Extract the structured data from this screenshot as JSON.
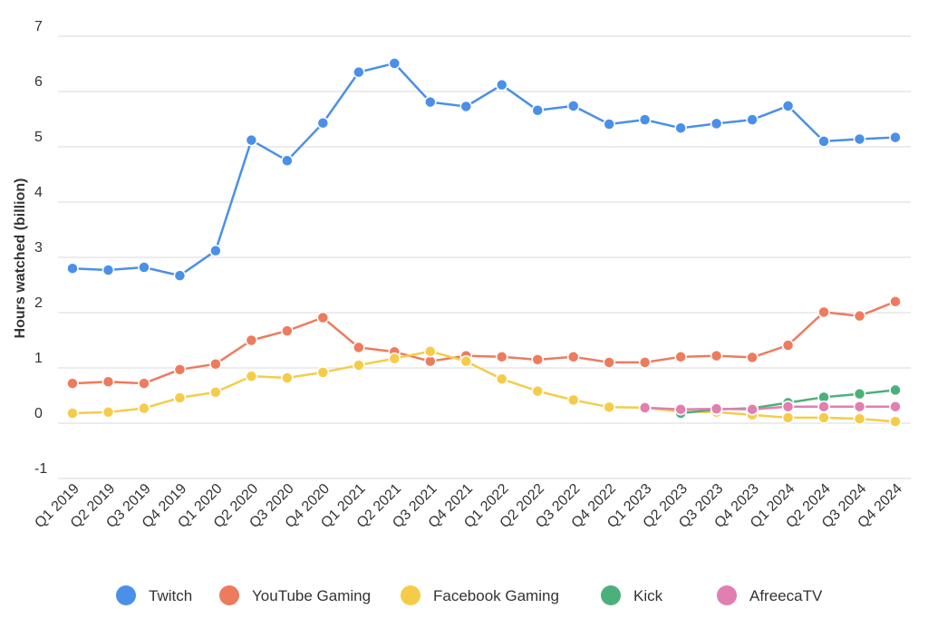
{
  "chart_data": {
    "type": "line",
    "ylabel": "Hours watched (billion)",
    "xlabel": "",
    "ylim": [
      -1,
      7
    ],
    "yticks": [
      7,
      6,
      5,
      4,
      3,
      2,
      1,
      0,
      -1
    ],
    "grid": true,
    "legend_position": "bottom",
    "categories": [
      "Q1 2019",
      "Q2 2019",
      "Q3 2019",
      "Q4 2019",
      "Q1 2020",
      "Q2 2020",
      "Q3 2020",
      "Q4 2020",
      "Q1 2021",
      "Q2 2021",
      "Q3 2021",
      "Q4 2021",
      "Q1 2022",
      "Q2 2022",
      "Q3 2022",
      "Q4 2022",
      "Q1 2023",
      "Q2 2023",
      "Q3 2023",
      "Q4 2023",
      "Q1 2024",
      "Q2 2024",
      "Q3 2024",
      "Q4 2024"
    ],
    "series": [
      {
        "name": "Twitch",
        "color": "#4a90e8",
        "values": [
          2.8,
          2.77,
          2.82,
          2.67,
          3.12,
          5.12,
          4.75,
          5.43,
          6.35,
          6.51,
          5.81,
          5.73,
          6.12,
          5.66,
          5.74,
          5.41,
          5.49,
          5.34,
          5.42,
          5.49,
          5.74,
          5.1,
          5.14,
          5.17
        ]
      },
      {
        "name": "YouTube Gaming",
        "color": "#ee7b5e",
        "values": [
          0.72,
          0.75,
          0.72,
          0.97,
          1.07,
          1.5,
          1.67,
          1.91,
          1.37,
          1.29,
          1.12,
          1.22,
          1.2,
          1.15,
          1.2,
          1.1,
          1.1,
          1.2,
          1.22,
          1.19,
          1.41,
          2.01,
          1.94,
          2.2
        ]
      },
      {
        "name": "Facebook Gaming",
        "color": "#f5cc4a",
        "values": [
          0.18,
          0.2,
          0.27,
          0.46,
          0.56,
          0.85,
          0.82,
          0.92,
          1.05,
          1.17,
          1.3,
          1.12,
          0.8,
          0.58,
          0.42,
          0.29,
          0.28,
          0.21,
          0.2,
          0.15,
          0.1,
          0.1,
          0.08,
          0.03
        ]
      },
      {
        "name": "Kick",
        "color": "#4cb07b",
        "values": [
          null,
          null,
          null,
          null,
          null,
          null,
          null,
          null,
          null,
          null,
          null,
          null,
          null,
          null,
          null,
          null,
          null,
          0.18,
          0.25,
          0.27,
          0.37,
          0.47,
          0.53,
          0.6
        ]
      },
      {
        "name": "AfreecaTV",
        "color": "#e07fb0",
        "values": [
          null,
          null,
          null,
          null,
          null,
          null,
          null,
          null,
          null,
          null,
          null,
          null,
          null,
          null,
          null,
          null,
          0.28,
          0.25,
          0.26,
          0.25,
          0.3,
          0.3,
          0.3,
          0.3
        ]
      }
    ]
  }
}
